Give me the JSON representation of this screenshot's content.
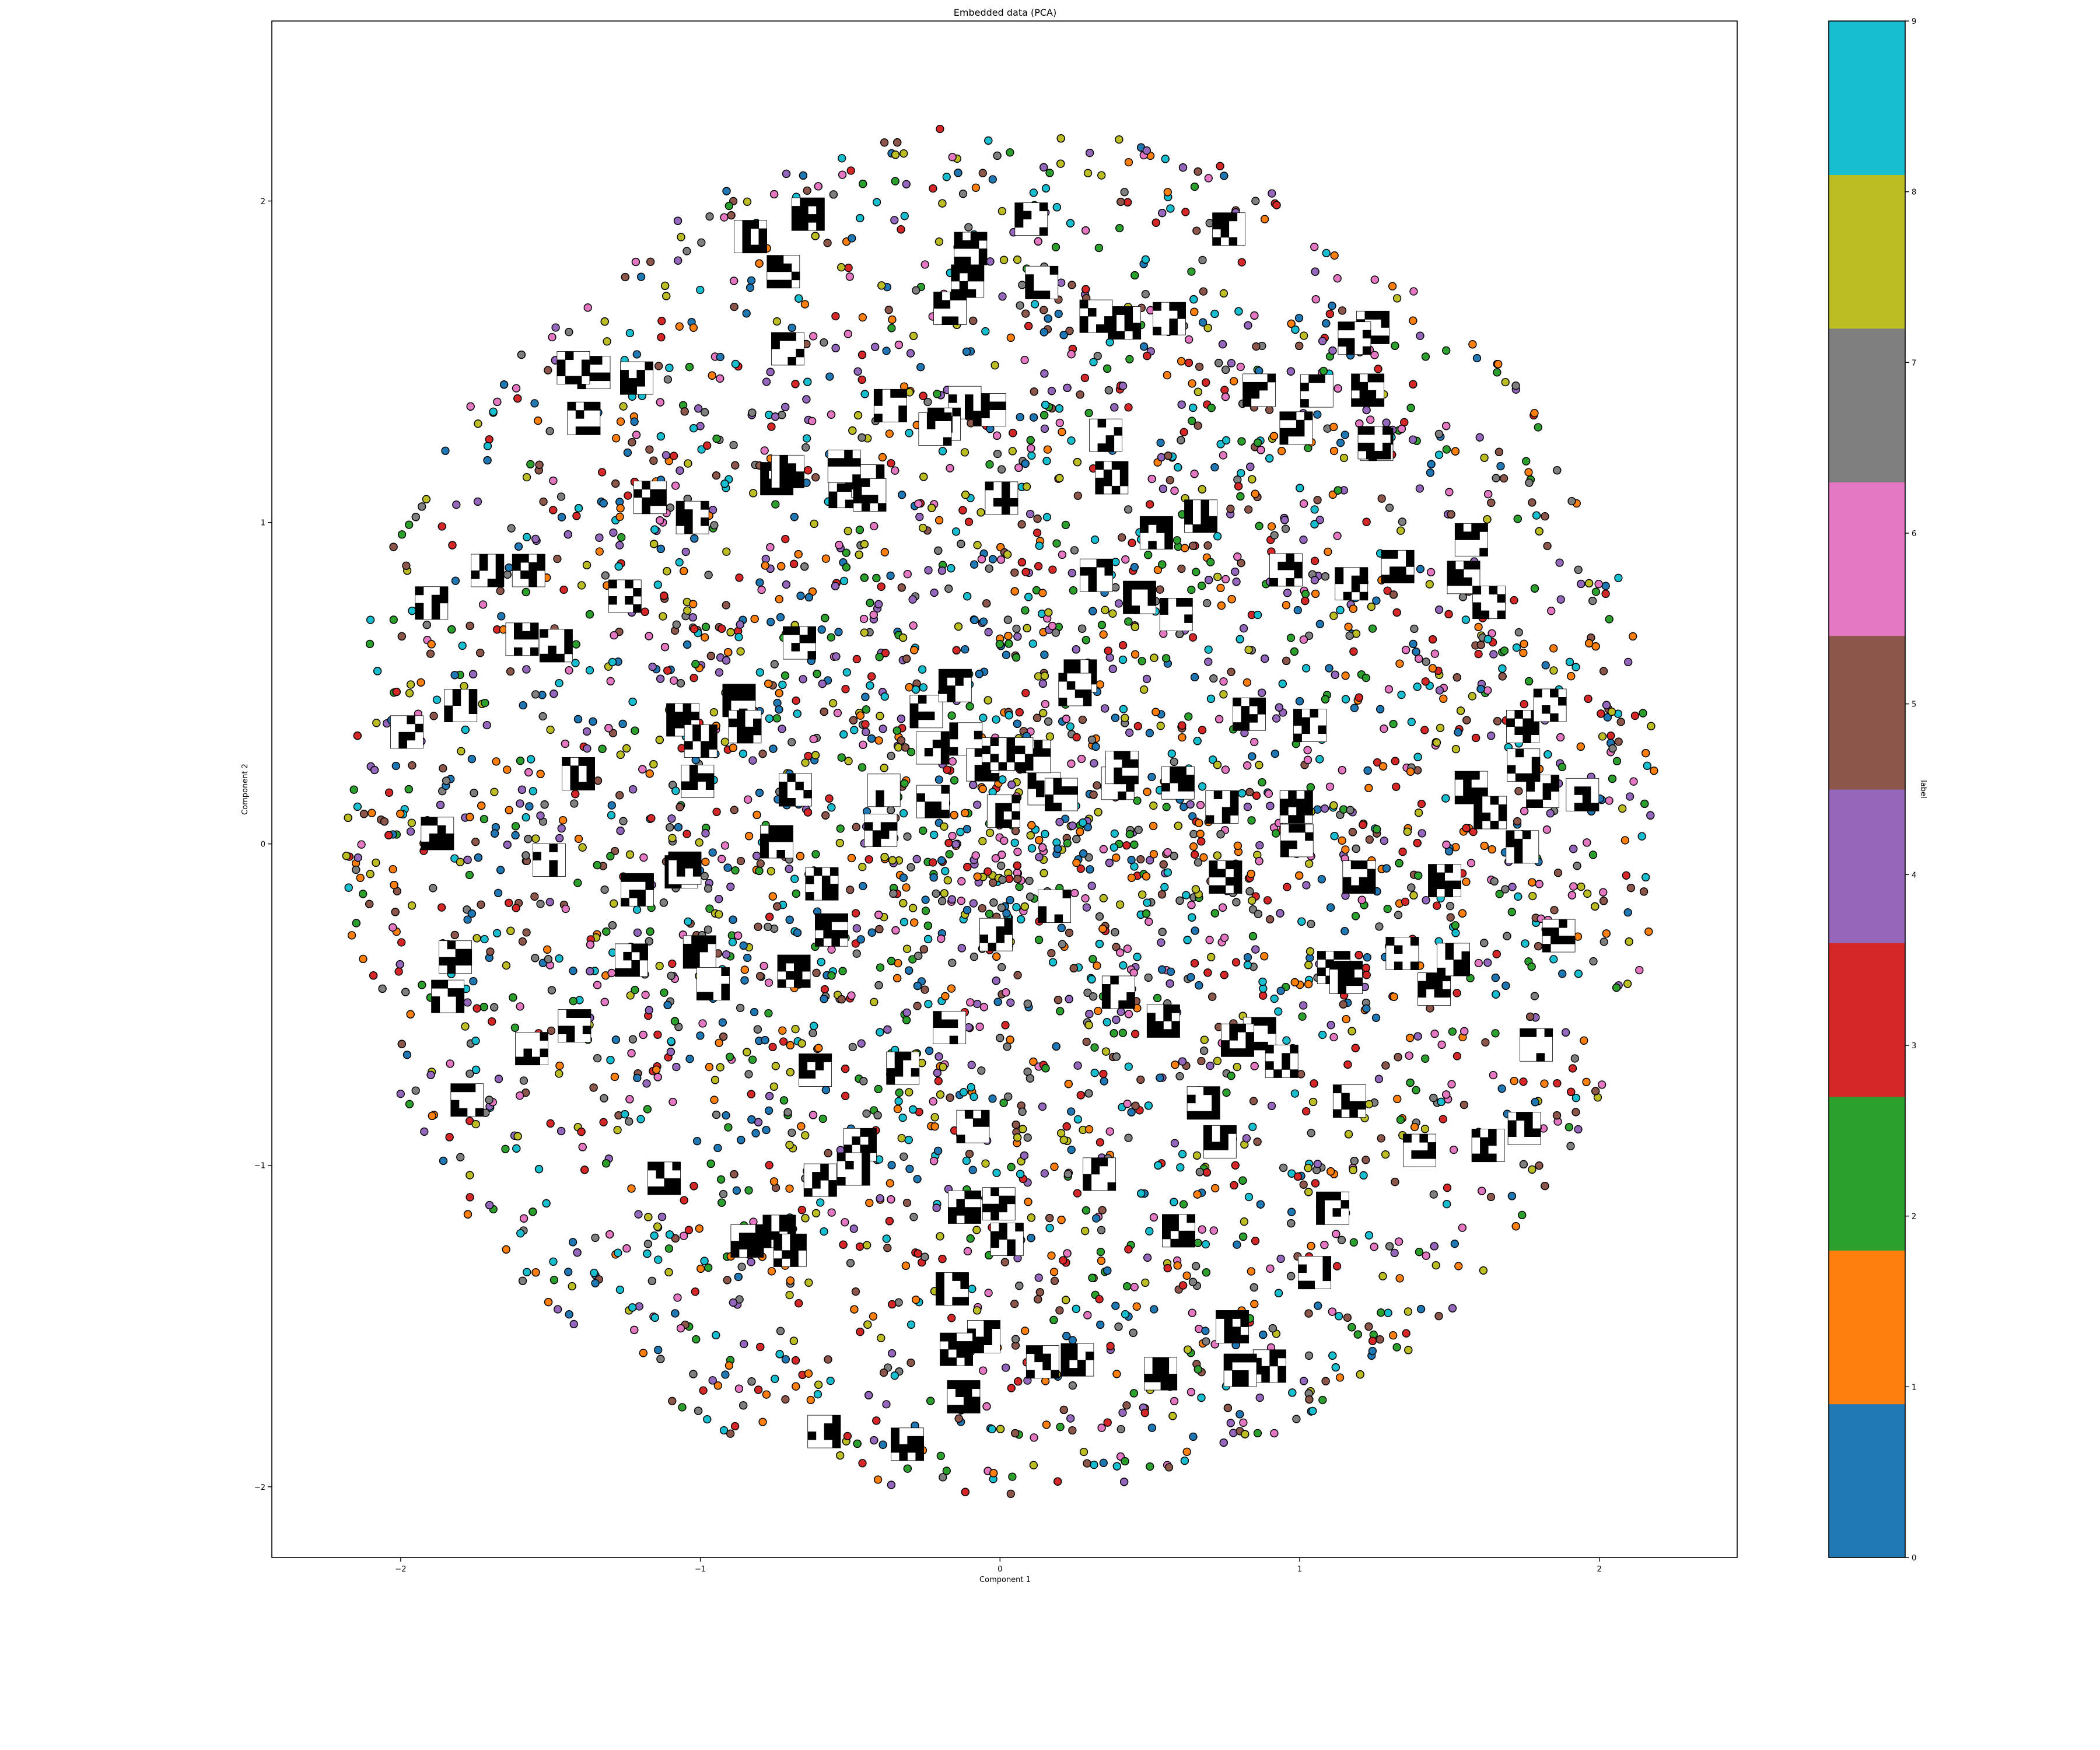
{
  "chart_data": {
    "type": "scatter",
    "title": "Embedded data (PCA)",
    "xlabel": "Component 1",
    "ylabel": "Component 2",
    "xlim": [
      -2.43,
      2.46
    ],
    "ylim": [
      -2.22,
      2.56
    ],
    "xticks": [
      -2,
      -1,
      0,
      1,
      2
    ],
    "yticks": [
      -2,
      -1,
      0,
      1,
      2
    ],
    "xtick_labels": [
      "−2",
      "−1",
      "0",
      "1",
      "2"
    ],
    "ytick_labels": [
      "−2",
      "−1",
      "0",
      "1",
      "2"
    ],
    "grid": false,
    "point_style": {
      "size": "medium",
      "edgecolor": "#000000",
      "shape": "circle"
    },
    "distribution": {
      "shape": "disc",
      "center": [
        0.0,
        0.1
      ],
      "radius": 2.2,
      "density": "denser toward the center and lower half",
      "approx_points": 5000,
      "labels_mixed": true
    },
    "image_annotations": {
      "description": "small black-and-white pixel thumbnails overlaid at embedded positions",
      "approx_count": 170
    },
    "colorbar": {
      "label": "label",
      "cmap": "tab10",
      "range": [
        0,
        9
      ],
      "ticks": [
        0,
        1,
        2,
        3,
        4,
        5,
        6,
        7,
        8,
        9
      ],
      "colors": [
        "#1f77b4",
        "#ff7f0e",
        "#2ca02c",
        "#d62728",
        "#9467bd",
        "#8c564b",
        "#e377c2",
        "#7f7f7f",
        "#bcbd22",
        "#17becf"
      ]
    }
  }
}
